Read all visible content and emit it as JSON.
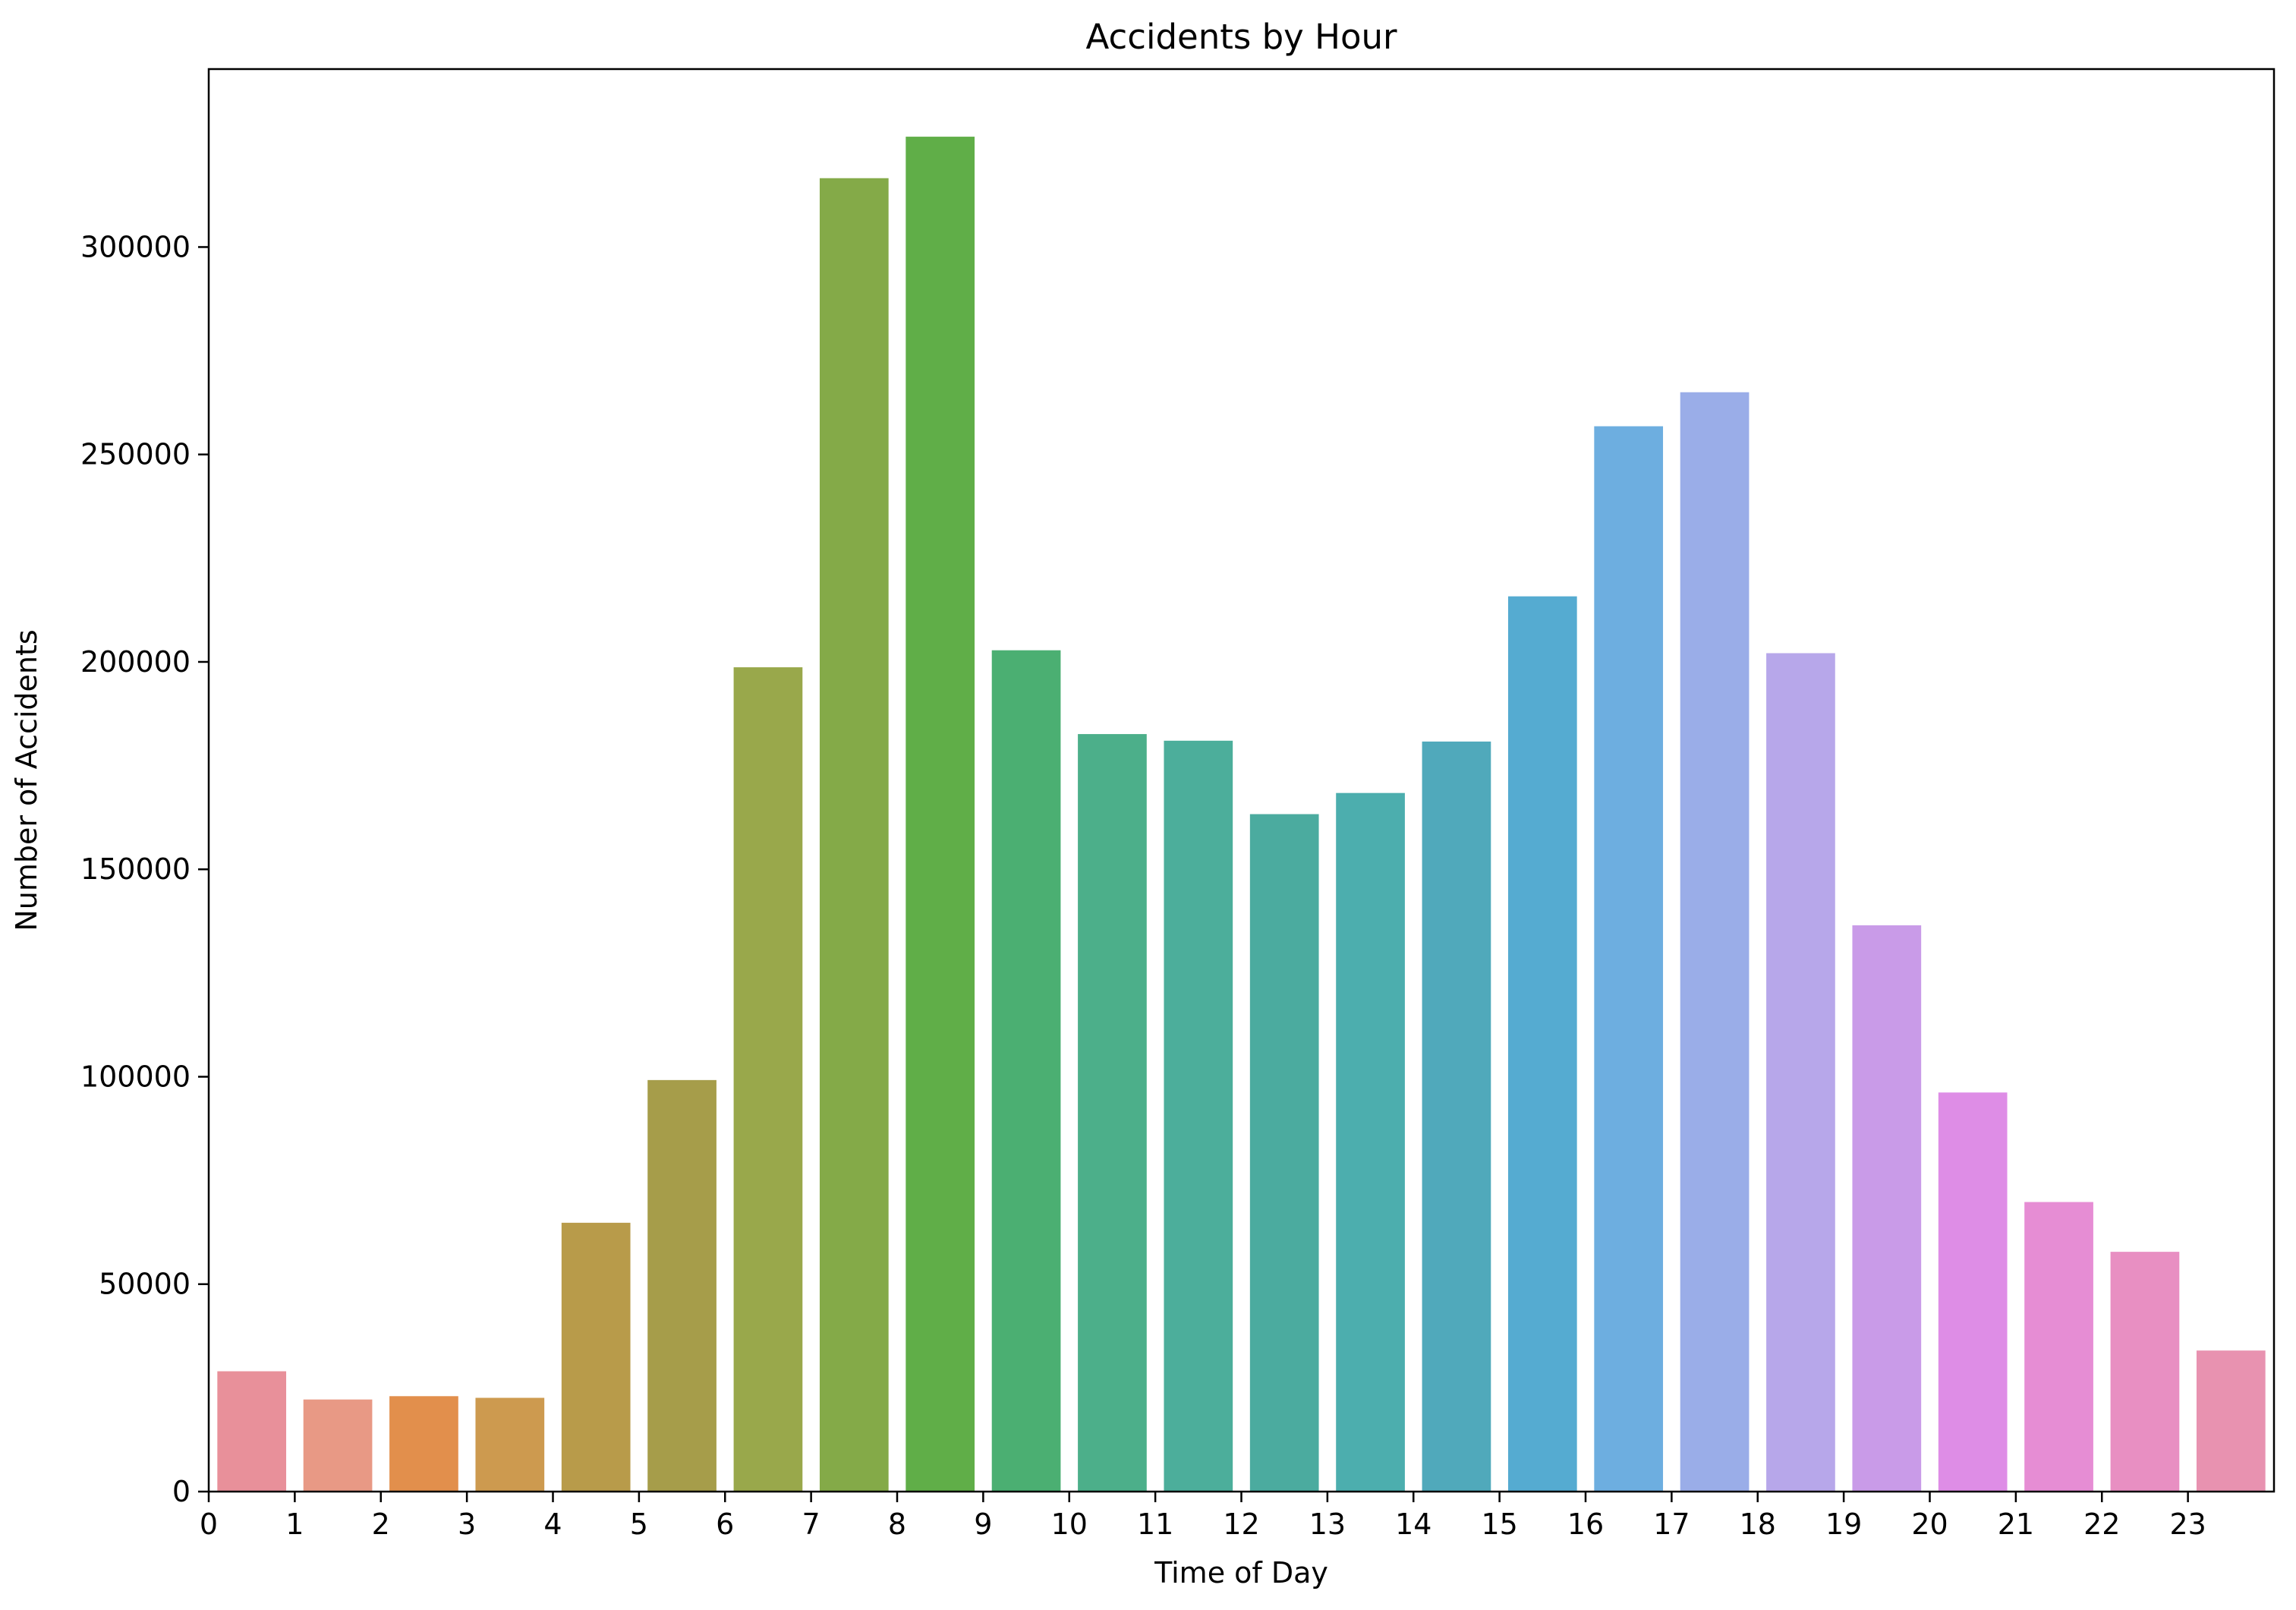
{
  "chart_data": {
    "type": "bar",
    "title": "Accidents by Hour",
    "xlabel": "Time of Day",
    "ylabel": "Number of Accidents",
    "categories": [
      "0",
      "1",
      "2",
      "3",
      "4",
      "5",
      "6",
      "7",
      "8",
      "9",
      "10",
      "11",
      "12",
      "13",
      "14",
      "15",
      "16",
      "17",
      "18",
      "19",
      "20",
      "21",
      "22",
      "23"
    ],
    "values": [
      29000,
      22200,
      23000,
      22600,
      64800,
      99200,
      198700,
      316600,
      326600,
      202800,
      182600,
      181000,
      163300,
      168400,
      180800,
      215800,
      256800,
      265000,
      202100,
      136500,
      96200,
      69800,
      57800,
      34000
    ],
    "colors": [
      "#e8909a",
      "#e89985",
      "#e28f4c",
      "#cd9a4f",
      "#b89b4a",
      "#a69d4a",
      "#99a84b",
      "#84aa48",
      "#60ae48",
      "#4baf72",
      "#4caf8a",
      "#4cae9b",
      "#4bab9f",
      "#4caeae",
      "#50a9bb",
      "#55abd1",
      "#6daee0",
      "#9aade8",
      "#b7a7ea",
      "#c99be8",
      "#de8de6",
      "#e68dd4",
      "#e88fc2",
      "#e892b0"
    ],
    "ylim": [
      0,
      342900
    ],
    "yticks": [
      0,
      50000,
      100000,
      150000,
      200000,
      250000,
      300000
    ],
    "grid": false,
    "legend": "none"
  }
}
